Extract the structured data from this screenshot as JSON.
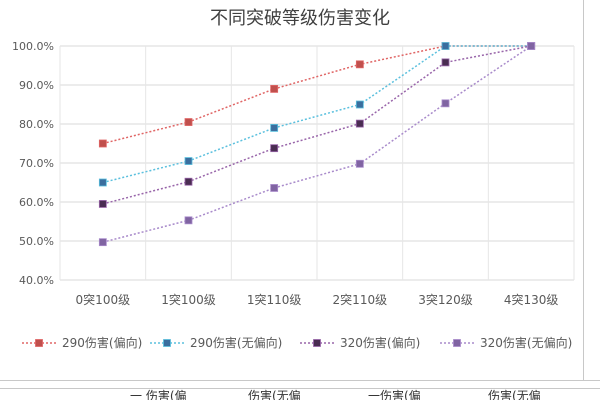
{
  "chart_data": {
    "type": "line",
    "title": "不同突破等级伤害变化",
    "xlabel": "",
    "ylabel": "",
    "categories": [
      "0突100级",
      "1突100级",
      "1突110级",
      "2突110级",
      "3突120级",
      "4突130级"
    ],
    "ylim": [
      0.4,
      1.0
    ],
    "yticks": [
      "40.0%",
      "50.0%",
      "60.0%",
      "70.0%",
      "80.0%",
      "90.0%",
      "100.0%"
    ],
    "grid": true,
    "legend_position": "bottom",
    "series": [
      {
        "name": "290伤害(偏向)",
        "values": [
          0.75,
          0.805,
          0.89,
          0.953,
          1.0,
          1.0
        ],
        "color": "#e06666",
        "marker_color": "#c0504d"
      },
      {
        "name": "290伤害(无偏向)",
        "values": [
          0.65,
          0.705,
          0.79,
          0.85,
          1.0,
          1.0
        ],
        "color": "#5bc0de",
        "marker_color": "#3b6e9e"
      },
      {
        "name": "320伤害(偏向)",
        "values": [
          0.595,
          0.652,
          0.738,
          0.801,
          0.958,
          1.0
        ],
        "color": "#9966aa",
        "marker_color": "#4a2d52"
      },
      {
        "name": "320伤害(无偏向)",
        "values": [
          0.497,
          0.553,
          0.636,
          0.698,
          0.853,
          1.0
        ],
        "color": "#a98bcb",
        "marker_color": "#8064a2"
      }
    ]
  },
  "bottom_strip": [
    "一 伤害(偏",
    "伤害(无偏",
    "一伤害(偏",
    "伤害(无偏"
  ]
}
